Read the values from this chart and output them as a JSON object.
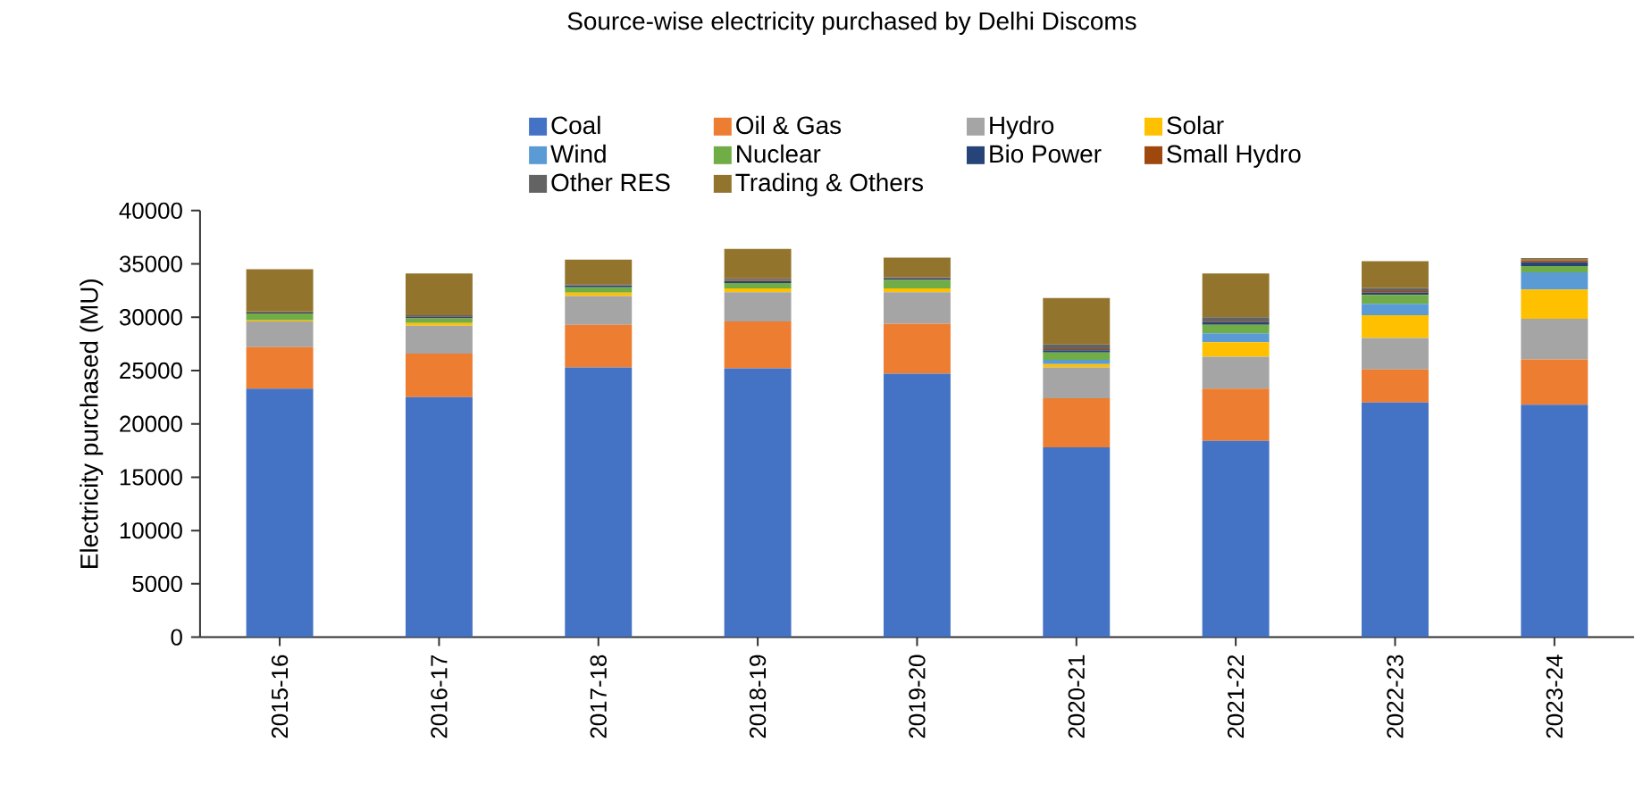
{
  "chart_data": {
    "type": "bar",
    "title": "Source-wise electricity purchased by Delhi Discoms",
    "ylabel": "Electricity purchased (MU)",
    "categories": [
      "2015-16",
      "2016-17",
      "2017-18",
      "2018-19",
      "2019-20",
      "2020-21",
      "2021-22",
      "2022-23",
      "2023-24"
    ],
    "stacked": true,
    "legend": "top",
    "grid": false,
    "ylim": [
      0,
      40000
    ],
    "yticks": [
      0,
      5000,
      10000,
      15000,
      20000,
      25000,
      30000,
      35000,
      40000
    ],
    "series": [
      {
        "name": "Coal",
        "color": "#4472c4",
        "values": [
          23300,
          22500,
          25300,
          25200,
          24700,
          17800,
          18400,
          22000,
          21800
        ]
      },
      {
        "name": "Oil & Gas",
        "color": "#ed7d31",
        "values": [
          3900,
          4100,
          4000,
          4400,
          4700,
          4600,
          4900,
          3100,
          4250
        ]
      },
      {
        "name": "Hydro",
        "color": "#a5a5a5",
        "values": [
          2400,
          2600,
          2700,
          2750,
          2950,
          2900,
          3000,
          2950,
          3800
        ]
      },
      {
        "name": "Solar",
        "color": "#ffc000",
        "values": [
          100,
          250,
          300,
          350,
          350,
          300,
          1350,
          2150,
          2750
        ]
      },
      {
        "name": "Wind",
        "color": "#5b9bd5",
        "values": [
          0,
          0,
          0,
          0,
          0,
          400,
          850,
          1050,
          1600
        ]
      },
      {
        "name": "Nuclear",
        "color": "#70ad47",
        "values": [
          650,
          450,
          500,
          500,
          800,
          700,
          800,
          850,
          600
        ]
      },
      {
        "name": "Bio Power",
        "color": "#264478",
        "values": [
          100,
          150,
          150,
          200,
          150,
          200,
          250,
          200,
          350
        ]
      },
      {
        "name": "Small Hydro",
        "color": "#9e480e",
        "values": [
          50,
          50,
          50,
          100,
          50,
          100,
          50,
          150,
          200
        ]
      },
      {
        "name": "Other RES",
        "color": "#636363",
        "values": [
          50,
          100,
          100,
          150,
          50,
          450,
          400,
          300,
          100
        ]
      },
      {
        "name": "Trading & Others",
        "color": "#93742c",
        "values": [
          3950,
          3900,
          2300,
          2750,
          1850,
          4350,
          4100,
          2500,
          100
        ]
      }
    ]
  }
}
